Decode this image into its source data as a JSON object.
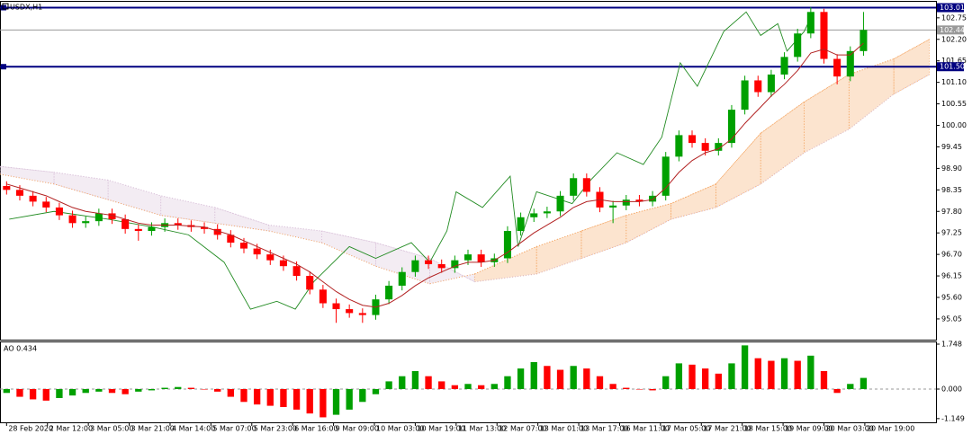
{
  "chart_data": [
    {
      "type": "candlestick",
      "title": "USDX,H1",
      "xlim": [
        -0.5,
        70.5
      ],
      "ylim": [
        94.52,
        103.16
      ],
      "yticks": [
        102.75,
        {
          "value": 102.2,
          "label": "102.20"
        },
        101.65,
        {
          "value": 101.1,
          "label": "101.10"
        },
        100.55,
        {
          "value": 100,
          "label": "100.00"
        },
        99.45,
        {
          "value": 98.9,
          "label": "98.90"
        },
        98.35,
        {
          "value": 97.8,
          "label": "97.80"
        },
        97.25,
        {
          "value": 96.7,
          "label": "96.70"
        },
        96.15,
        {
          "value": 95.6,
          "label": "95.60"
        },
        95.05
      ],
      "xticks": [
        {
          "value": 0,
          "label": "28 Feb 2020"
        },
        {
          "value": 3.1,
          "label": "2 Mar 12:00"
        },
        {
          "value": 6.2,
          "label": "3 Mar 05:00"
        },
        {
          "value": 9.3,
          "label": "3 Mar 21:00"
        },
        {
          "value": 12.4,
          "label": "4 Mar 14:00"
        },
        {
          "value": 15.5,
          "label": "5 Mar 07:00"
        },
        {
          "value": 18.6,
          "label": "5 Mar 23:00"
        },
        {
          "value": 21.7,
          "label": "6 Mar 16:00"
        },
        {
          "value": 24.8,
          "label": "9 Mar 09:00"
        },
        {
          "value": 27.9,
          "label": "10 Mar 03:00"
        },
        {
          "value": 31,
          "label": "10 Mar 19:00"
        },
        {
          "value": 34.1,
          "label": "11 Mar 13:00"
        },
        {
          "value": 37.2,
          "label": "12 Mar 07:00"
        },
        {
          "value": 40.3,
          "label": "13 Mar 01:00"
        },
        {
          "value": 43.4,
          "label": "13 Mar 17:00"
        },
        {
          "value": 46.5,
          "label": "16 Mar 11:00"
        },
        {
          "value": 49.6,
          "label": "17 Mar 05:00"
        },
        {
          "value": 52.7,
          "label": "17 Mar 21:00"
        },
        {
          "value": 55.8,
          "label": "18 Mar 15:00"
        },
        {
          "value": 58.9,
          "label": "19 Mar 09:00"
        },
        {
          "value": 62,
          "label": "20 Mar 03:00"
        },
        {
          "value": 65.1,
          "label": "20 Mar 19:00"
        }
      ],
      "up_color": "#00a000",
      "down_color": "#ff0000",
      "open": [
        98.45,
        98.35,
        98.2,
        98.05,
        97.9,
        97.7,
        97.5,
        97.55,
        97.75,
        97.6,
        97.35,
        97.3,
        97.4,
        97.5,
        97.45,
        97.4,
        97.35,
        97.2,
        97.0,
        96.85,
        96.7,
        96.55,
        96.4,
        96.15,
        95.8,
        95.45,
        95.3,
        95.2,
        95.15,
        95.55,
        95.9,
        96.25,
        96.55,
        96.45,
        96.35,
        96.55,
        96.7,
        96.5,
        96.6,
        97.3,
        97.65,
        97.75,
        97.8,
        98.2,
        98.65,
        98.3,
        97.9,
        97.95,
        98.1,
        98.05,
        98.2,
        99.2,
        99.75,
        99.55,
        99.35,
        99.55,
        100.4,
        101.15,
        100.85,
        101.3,
        101.75,
        102.35,
        102.9,
        101.7,
        101.25,
        101.9
      ],
      "high": [
        98.57,
        98.47,
        98.32,
        98.17,
        98.02,
        97.82,
        97.67,
        97.87,
        97.87,
        97.72,
        97.47,
        97.52,
        97.62,
        97.62,
        97.57,
        97.52,
        97.47,
        97.32,
        97.12,
        96.97,
        96.82,
        96.67,
        96.52,
        96.27,
        95.92,
        95.57,
        95.42,
        95.32,
        95.67,
        96.02,
        96.37,
        96.67,
        96.67,
        96.57,
        96.67,
        96.82,
        96.82,
        96.72,
        97.42,
        97.77,
        97.87,
        97.92,
        98.32,
        98.77,
        98.77,
        98.42,
        98.07,
        98.22,
        98.22,
        98.32,
        99.32,
        99.87,
        99.87,
        99.67,
        99.67,
        100.52,
        101.27,
        101.27,
        101.42,
        101.87,
        102.47,
        103.02,
        102.98,
        101.82,
        102.02,
        102.9
      ],
      "low": [
        98.23,
        98.08,
        97.93,
        97.78,
        97.58,
        97.38,
        97.38,
        97.43,
        97.48,
        97.23,
        97.05,
        97.18,
        97.28,
        97.33,
        97.28,
        97.23,
        97.08,
        96.88,
        96.73,
        96.58,
        96.43,
        96.28,
        96.03,
        95.68,
        95.33,
        94.95,
        95.08,
        94.95,
        95.03,
        95.43,
        95.78,
        96.13,
        96.33,
        96.23,
        96.23,
        96.43,
        96.38,
        96.38,
        96.48,
        97.18,
        97.53,
        97.63,
        97.68,
        98.08,
        98.18,
        97.78,
        97.5,
        97.83,
        97.93,
        97.93,
        98.08,
        99.08,
        99.43,
        99.23,
        99.23,
        99.43,
        100.28,
        100.73,
        100.73,
        101.18,
        101.63,
        102.23,
        101.58,
        101.05,
        101.13,
        101.78
      ],
      "close": [
        98.35,
        98.2,
        98.05,
        97.9,
        97.7,
        97.5,
        97.55,
        97.75,
        97.6,
        97.35,
        97.3,
        97.4,
        97.5,
        97.45,
        97.4,
        97.35,
        97.2,
        97.0,
        96.85,
        96.7,
        96.55,
        96.4,
        96.15,
        95.8,
        95.45,
        95.3,
        95.2,
        95.15,
        95.55,
        95.9,
        96.25,
        96.55,
        96.45,
        96.35,
        96.55,
        96.7,
        96.5,
        96.6,
        97.3,
        97.65,
        97.75,
        97.8,
        98.2,
        98.65,
        98.3,
        97.9,
        97.95,
        98.1,
        98.05,
        98.2,
        99.2,
        99.75,
        99.55,
        99.35,
        99.55,
        100.4,
        101.15,
        100.85,
        101.3,
        101.75,
        102.35,
        102.9,
        101.7,
        101.25,
        101.9,
        102.44
      ],
      "ma": {
        "color": "#b22222",
        "values": [
          98.5,
          98.4,
          98.3,
          98.2,
          98.05,
          97.9,
          97.8,
          97.75,
          97.7,
          97.6,
          97.5,
          97.45,
          97.45,
          97.45,
          97.42,
          97.4,
          97.3,
          97.2,
          97.05,
          96.9,
          96.75,
          96.6,
          96.45,
          96.25,
          96.0,
          95.75,
          95.55,
          95.4,
          95.35,
          95.45,
          95.65,
          95.9,
          96.1,
          96.25,
          96.4,
          96.5,
          96.5,
          96.55,
          96.75,
          97.0,
          97.25,
          97.45,
          97.65,
          97.9,
          98.05,
          98.1,
          98.05,
          98.05,
          98.05,
          98.1,
          98.4,
          98.8,
          99.1,
          99.3,
          99.4,
          99.65,
          100.05,
          100.4,
          100.75,
          101.05,
          101.4,
          101.85,
          101.95,
          101.8,
          101.8,
          102.1
        ]
      },
      "chikou": {
        "color": "#228b22",
        "x": [
          0.2,
          3.6,
          7.7,
          11.1,
          13.8,
          16.5,
          18.5,
          20.5,
          21.9,
          23.3,
          26.0,
          28.0,
          30.7,
          32.1,
          33.4,
          34.1,
          36.1,
          38.2,
          38.8,
          40.2,
          42.9,
          44.3,
          46.3,
          48.3,
          49.7,
          51.1,
          52.4,
          53.4,
          54.4,
          56.1,
          57.2,
          58.5,
          59.2,
          60.5,
          61.2
        ],
        "values": [
          97.6,
          97.8,
          97.6,
          97.4,
          97.2,
          96.5,
          95.3,
          95.5,
          95.3,
          96.0,
          96.9,
          96.6,
          97.0,
          96.5,
          97.3,
          98.3,
          97.9,
          98.7,
          96.9,
          98.3,
          98.0,
          98.6,
          99.3,
          99.0,
          99.7,
          101.6,
          101.0,
          101.7,
          102.4,
          102.9,
          102.3,
          102.6,
          101.9,
          102.4,
          102.9
        ]
      },
      "cloud": {
        "up_color": "#f4a460",
        "down_color": "#d8bfd8",
        "x": [
          -0.5,
          3.6,
          7.7,
          11.7,
          15.8,
          19.9,
          23.9,
          28.0,
          32.1,
          35.5,
          40.2,
          43.6,
          47.0,
          50.4,
          53.8,
          57.2,
          60.5,
          63.9,
          67.3,
          70.0
        ],
        "span_a": [
          98.75,
          98.5,
          98.1,
          97.7,
          97.5,
          97.3,
          97.0,
          96.4,
          95.95,
          96.2,
          96.9,
          97.3,
          97.7,
          98.0,
          98.5,
          99.8,
          100.6,
          101.3,
          101.7,
          102.2
        ],
        "span_b": [
          98.95,
          98.8,
          98.6,
          98.2,
          97.9,
          97.45,
          97.3,
          97.0,
          96.6,
          96.0,
          96.2,
          96.6,
          97.0,
          97.6,
          97.9,
          98.5,
          99.3,
          99.9,
          100.8,
          101.3
        ]
      },
      "levels": [
        {
          "value": 103.01,
          "label": "103.01",
          "color": "#000080"
        },
        {
          "value": 102.44,
          "label": "102.44",
          "color": "#999999"
        },
        {
          "value": 101.5,
          "label": "101.50",
          "color": "#000080"
        }
      ]
    },
    {
      "type": "bar",
      "title": "AO 0.434",
      "xlim": [
        -0.5,
        70.5
      ],
      "ylim": [
        -1.294,
        1.853
      ],
      "yticks": [
        1.748,
        {
          "value": 0,
          "label": "0.000"
        },
        -1.149
      ],
      "up_color": "#00a000",
      "down_color": "#ff0000",
      "values": [
        -0.15,
        -0.3,
        -0.4,
        -0.45,
        -0.35,
        -0.25,
        -0.15,
        -0.1,
        -0.15,
        -0.2,
        -0.1,
        -0.05,
        0.05,
        0.08,
        0.05,
        0.0,
        -0.1,
        -0.3,
        -0.5,
        -0.6,
        -0.65,
        -0.7,
        -0.8,
        -0.95,
        -1.1,
        -1.0,
        -0.8,
        -0.5,
        -0.2,
        0.3,
        0.5,
        0.7,
        0.5,
        0.3,
        0.15,
        0.2,
        0.15,
        0.2,
        0.5,
        0.8,
        1.05,
        0.9,
        0.75,
        0.9,
        0.8,
        0.5,
        0.2,
        0.05,
        0.0,
        -0.05,
        0.5,
        1.0,
        0.95,
        0.8,
        0.6,
        1.0,
        1.7,
        1.2,
        1.1,
        1.2,
        1.1,
        1.3,
        0.7,
        -0.15,
        0.2,
        0.434
      ]
    }
  ]
}
